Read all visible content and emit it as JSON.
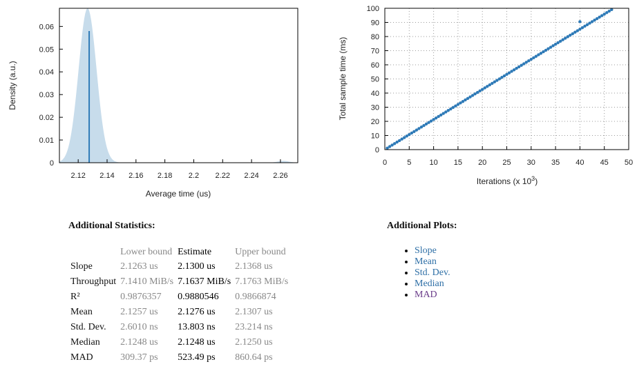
{
  "pdf_plot": {
    "ylabel": "Density (a.u.)",
    "xlabel": "Average time (us)",
    "y_ticks": [
      "0",
      "0.01",
      "0.02",
      "0.03",
      "0.04",
      "0.05",
      "0.06"
    ],
    "x_ticks": [
      "2.12",
      "2.14",
      "2.16",
      "2.18",
      "2.2",
      "2.22",
      "2.24",
      "2.26"
    ],
    "fill_color": "#c7dceb",
    "line_color": "#2e7ab7"
  },
  "regression_plot": {
    "ylabel": "Total sample time (ms)",
    "xlabel": "Iterations (x 10",
    "xlabel_exp": "3",
    "xlabel_suffix": ")",
    "y_ticks": [
      "0",
      "10",
      "20",
      "30",
      "40",
      "50",
      "60",
      "70",
      "80",
      "90",
      "100"
    ],
    "x_ticks": [
      "0",
      "5",
      "10",
      "15",
      "20",
      "25",
      "30",
      "35",
      "40",
      "45",
      "50"
    ],
    "point_color": "#2e7ab7"
  },
  "chart_data": [
    {
      "type": "area",
      "xlabel": "Average time (us)",
      "ylabel": "Density (a.u.)",
      "xlim": [
        2.107,
        2.272
      ],
      "ylim": [
        0,
        0.068
      ],
      "kde_main": {
        "mean": 2.1265,
        "sd": 0.0062,
        "peak": 0.068
      },
      "kde_tail": {
        "mean": 2.262,
        "sd": 0.004,
        "peak": 0.0008
      },
      "estimate": {
        "x": 2.1276,
        "density": 0.058
      },
      "grid": false
    },
    {
      "type": "scatter",
      "xlabel": "Iterations (x 10^3)",
      "ylabel": "Total sample time (ms)",
      "xlim": [
        0,
        50
      ],
      "ylim": [
        0,
        100
      ],
      "grid": true,
      "slope_ms_per_kiter": 2.13,
      "x_range": [
        0.5,
        46.5
      ],
      "n_points": 93,
      "outliers": [
        {
          "x": 40,
          "y": 90.5
        }
      ]
    }
  ],
  "stats": {
    "title": "Additional Statistics:",
    "headers": [
      "",
      "Lower bound",
      "Estimate",
      "Upper bound"
    ],
    "rows": [
      {
        "label": "Slope",
        "lower": "2.1263 us",
        "estimate": "2.1300 us",
        "upper": "2.1368 us"
      },
      {
        "label": "Throughput",
        "lower": "7.1410 MiB/s",
        "estimate": "7.1637 MiB/s",
        "upper": "7.1763 MiB/s"
      },
      {
        "label": "R²",
        "lower": "0.9876357",
        "estimate": "0.9880546",
        "upper": "0.9866874"
      },
      {
        "label": "Mean",
        "lower": "2.1257 us",
        "estimate": "2.1276 us",
        "upper": "2.1307 us"
      },
      {
        "label": "Std. Dev.",
        "lower": "2.6010 ns",
        "estimate": "13.803 ns",
        "upper": "23.214 ns"
      },
      {
        "label": "Median",
        "lower": "2.1248 us",
        "estimate": "2.1248 us",
        "upper": "2.1250 us"
      },
      {
        "label": "MAD",
        "lower": "309.37 ps",
        "estimate": "523.49 ps",
        "upper": "860.64 ps"
      }
    ]
  },
  "plots": {
    "title": "Additional Plots:",
    "links": [
      "Slope",
      "Mean",
      "Std. Dev.",
      "Median",
      "MAD"
    ],
    "link_color": "#2e6fa6",
    "visited_color": "#6b3d8a"
  }
}
